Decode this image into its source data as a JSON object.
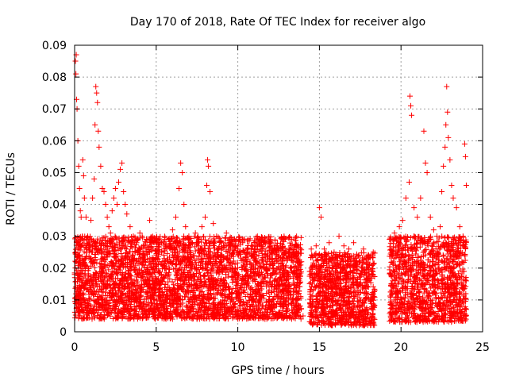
{
  "chart_data": {
    "type": "scatter",
    "title": "Day 170 of 2018, Rate Of TEC Index for receiver algo",
    "xlabel": "GPS time / hours",
    "ylabel": "ROTI / TECUs",
    "xlim": [
      0,
      25
    ],
    "ylim": [
      0,
      0.09
    ],
    "xticks": [
      "0",
      "5",
      "10",
      "15",
      "20",
      "25"
    ],
    "yticks": [
      "0",
      "0.01",
      "0.02",
      "0.03",
      "0.04",
      "0.05",
      "0.06",
      "0.07",
      "0.08",
      "0.09"
    ],
    "grid": true,
    "marker": "plus",
    "color": "#ff0000",
    "series": [
      {
        "points": [
          [
            0.0,
            0.018
          ],
          [
            0.05,
            0.085
          ],
          [
            0.08,
            0.081
          ],
          [
            0.1,
            0.087
          ],
          [
            0.12,
            0.073
          ],
          [
            0.15,
            0.07
          ],
          [
            0.2,
            0.06
          ],
          [
            0.25,
            0.052
          ],
          [
            0.3,
            0.045
          ],
          [
            0.35,
            0.038
          ],
          [
            0.4,
            0.036
          ],
          [
            0.5,
            0.054
          ],
          [
            0.55,
            0.049
          ],
          [
            0.6,
            0.042
          ],
          [
            0.7,
            0.036
          ],
          [
            0.8,
            0.03
          ],
          [
            0.9,
            0.028
          ],
          [
            1.0,
            0.035
          ],
          [
            1.1,
            0.042
          ],
          [
            1.2,
            0.048
          ],
          [
            1.25,
            0.065
          ],
          [
            1.3,
            0.077
          ],
          [
            1.35,
            0.075
          ],
          [
            1.4,
            0.072
          ],
          [
            1.45,
            0.063
          ],
          [
            1.5,
            0.058
          ],
          [
            1.6,
            0.052
          ],
          [
            1.7,
            0.045
          ],
          [
            1.8,
            0.044
          ],
          [
            1.9,
            0.04
          ],
          [
            2.0,
            0.036
          ],
          [
            2.1,
            0.033
          ],
          [
            2.2,
            0.031
          ],
          [
            2.3,
            0.038
          ],
          [
            2.4,
            0.042
          ],
          [
            2.5,
            0.045
          ],
          [
            2.6,
            0.04
          ],
          [
            2.7,
            0.047
          ],
          [
            2.8,
            0.051
          ],
          [
            2.9,
            0.053
          ],
          [
            3.0,
            0.044
          ],
          [
            3.1,
            0.04
          ],
          [
            3.2,
            0.037
          ],
          [
            3.4,
            0.033
          ],
          [
            3.6,
            0.03
          ],
          [
            3.8,
            0.028
          ],
          [
            4.0,
            0.031
          ],
          [
            4.2,
            0.027
          ],
          [
            4.4,
            0.029
          ],
          [
            4.6,
            0.035
          ],
          [
            4.8,
            0.026
          ],
          [
            5.0,
            0.024
          ],
          [
            5.2,
            0.025
          ],
          [
            5.5,
            0.023
          ],
          [
            5.8,
            0.027
          ],
          [
            6.0,
            0.032
          ],
          [
            6.2,
            0.036
          ],
          [
            6.4,
            0.045
          ],
          [
            6.5,
            0.053
          ],
          [
            6.6,
            0.05
          ],
          [
            6.7,
            0.04
          ],
          [
            6.8,
            0.033
          ],
          [
            7.0,
            0.03
          ],
          [
            7.2,
            0.028
          ],
          [
            7.4,
            0.031
          ],
          [
            7.6,
            0.027
          ],
          [
            7.8,
            0.033
          ],
          [
            8.0,
            0.036
          ],
          [
            8.1,
            0.046
          ],
          [
            8.15,
            0.054
          ],
          [
            8.2,
            0.052
          ],
          [
            8.3,
            0.044
          ],
          [
            8.5,
            0.034
          ],
          [
            8.7,
            0.03
          ],
          [
            9.0,
            0.028
          ],
          [
            9.3,
            0.031
          ],
          [
            9.5,
            0.027
          ],
          [
            9.8,
            0.029
          ],
          [
            10.0,
            0.026
          ],
          [
            10.3,
            0.028
          ],
          [
            10.6,
            0.025
          ],
          [
            10.9,
            0.027
          ],
          [
            11.2,
            0.03
          ],
          [
            11.5,
            0.026
          ],
          [
            11.8,
            0.024
          ],
          [
            12.1,
            0.026
          ],
          [
            12.4,
            0.027
          ],
          [
            12.7,
            0.025
          ],
          [
            13.0,
            0.023
          ],
          [
            13.3,
            0.024
          ],
          [
            13.6,
            0.025
          ],
          [
            13.9,
            0.022
          ],
          [
            14.5,
            0.026
          ],
          [
            14.8,
            0.027
          ],
          [
            15.0,
            0.039
          ],
          [
            15.1,
            0.036
          ],
          [
            15.3,
            0.026
          ],
          [
            15.6,
            0.028
          ],
          [
            15.9,
            0.025
          ],
          [
            16.2,
            0.03
          ],
          [
            16.5,
            0.027
          ],
          [
            16.8,
            0.026
          ],
          [
            17.1,
            0.028
          ],
          [
            17.4,
            0.024
          ],
          [
            17.7,
            0.026
          ],
          [
            18.0,
            0.023
          ],
          [
            18.3,
            0.025
          ],
          [
            19.3,
            0.029
          ],
          [
            19.6,
            0.031
          ],
          [
            19.9,
            0.033
          ],
          [
            20.1,
            0.035
          ],
          [
            20.3,
            0.042
          ],
          [
            20.5,
            0.047
          ],
          [
            20.55,
            0.074
          ],
          [
            20.6,
            0.071
          ],
          [
            20.65,
            0.068
          ],
          [
            20.8,
            0.039
          ],
          [
            21.0,
            0.036
          ],
          [
            21.2,
            0.042
          ],
          [
            21.4,
            0.063
          ],
          [
            21.5,
            0.053
          ],
          [
            21.6,
            0.05
          ],
          [
            21.8,
            0.036
          ],
          [
            22.0,
            0.032
          ],
          [
            22.2,
            0.03
          ],
          [
            22.4,
            0.033
          ],
          [
            22.5,
            0.044
          ],
          [
            22.6,
            0.052
          ],
          [
            22.7,
            0.058
          ],
          [
            22.75,
            0.065
          ],
          [
            22.8,
            0.077
          ],
          [
            22.85,
            0.069
          ],
          [
            22.9,
            0.061
          ],
          [
            23.0,
            0.054
          ],
          [
            23.1,
            0.046
          ],
          [
            23.2,
            0.042
          ],
          [
            23.4,
            0.039
          ],
          [
            23.6,
            0.033
          ],
          [
            23.8,
            0.03
          ],
          [
            23.9,
            0.059
          ],
          [
            23.95,
            0.055
          ],
          [
            24.0,
            0.046
          ],
          [
            0.2,
            0.012
          ],
          [
            0.6,
            0.01
          ],
          [
            1.0,
            0.014
          ],
          [
            1.5,
            0.011
          ],
          [
            2.0,
            0.016
          ],
          [
            2.5,
            0.013
          ],
          [
            3.0,
            0.009
          ],
          [
            3.5,
            0.012
          ],
          [
            4.0,
            0.008
          ],
          [
            4.5,
            0.011
          ],
          [
            5.0,
            0.007
          ],
          [
            5.5,
            0.006
          ],
          [
            6.0,
            0.004
          ],
          [
            6.5,
            0.005
          ],
          [
            7.0,
            0.006
          ],
          [
            7.5,
            0.004
          ],
          [
            8.0,
            0.006
          ],
          [
            8.5,
            0.005
          ],
          [
            9.0,
            0.007
          ],
          [
            9.5,
            0.006
          ],
          [
            10.0,
            0.005
          ],
          [
            10.5,
            0.007
          ],
          [
            11.0,
            0.006
          ],
          [
            11.5,
            0.005
          ],
          [
            12.0,
            0.007
          ],
          [
            12.5,
            0.006
          ],
          [
            13.0,
            0.005
          ],
          [
            13.5,
            0.006
          ],
          [
            14.0,
            0.005
          ],
          [
            14.6,
            0.006
          ],
          [
            15.0,
            0.003
          ],
          [
            15.5,
            0.004
          ],
          [
            16.0,
            0.006
          ],
          [
            16.5,
            0.005
          ],
          [
            17.0,
            0.007
          ],
          [
            17.5,
            0.005
          ],
          [
            18.0,
            0.006
          ],
          [
            19.5,
            0.008
          ],
          [
            20.0,
            0.007
          ],
          [
            20.5,
            0.006
          ],
          [
            21.0,
            0.005
          ],
          [
            21.5,
            0.007
          ],
          [
            22.0,
            0.006
          ],
          [
            22.5,
            0.005
          ],
          [
            23.0,
            0.006
          ],
          [
            23.5,
            0.005
          ],
          [
            24.0,
            0.007
          ]
        ]
      }
    ],
    "dense_band": {
      "segments": [
        {
          "x": [
            0.0,
            13.9
          ],
          "y_low": 0.004,
          "y_high": 0.03
        },
        {
          "x": [
            14.4,
            18.4
          ],
          "y_low": 0.002,
          "y_high": 0.025
        },
        {
          "x": [
            19.3,
            24.0
          ],
          "y_low": 0.003,
          "y_high": 0.03
        }
      ]
    }
  }
}
